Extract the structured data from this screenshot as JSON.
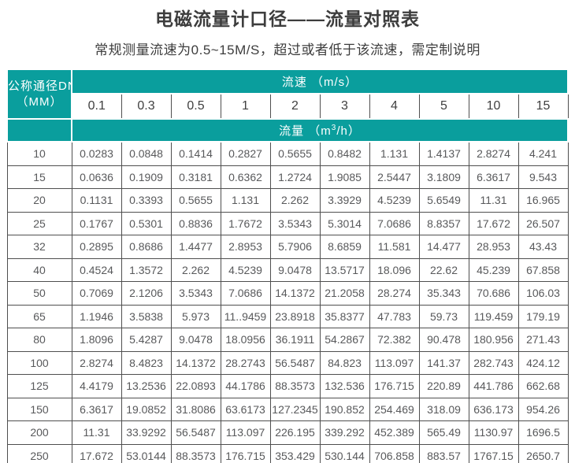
{
  "page": {
    "title": "电磁流量计口径——流量对照表",
    "subtitle": "常规测量流速为0.5~15M/S，超过或者低于该流速，需定制说明"
  },
  "colors": {
    "teal_header": "#0A9E9D",
    "header_text": "#ffffff",
    "title_text": "#3d3d3d",
    "data_text": "#58595b",
    "grid_line": "#4f4f4f"
  },
  "chart_data": {
    "type": "table",
    "title": "电磁流量计口径——流量对照表",
    "subtitle": "常规测量流速为0.5~15M/S，超过或者低于该流速，需定制说明",
    "corner_header_line1": "公称通径DN",
    "corner_header_line2": "（MM）",
    "velocity_header": "流速 （m/s）",
    "flowrate_header_prefix": "流量 （m",
    "flowrate_header_sup": "3",
    "flowrate_header_suffix": "/h）",
    "velocities": [
      "0.1",
      "0.3",
      "0.5",
      "1",
      "2",
      "3",
      "4",
      "5",
      "10",
      "15"
    ],
    "rows": [
      {
        "dn": "10",
        "values": [
          "0.0283",
          "0.0848",
          "0.1414",
          "0.2827",
          "0.5655",
          "0.8482",
          "1.131",
          "1.4137",
          "2.8274",
          "4.241"
        ]
      },
      {
        "dn": "15",
        "values": [
          "0.0636",
          "0.1909",
          "0.3181",
          "0.6362",
          "1.2724",
          "1.9085",
          "2.5447",
          "3.1809",
          "6.3617",
          "9.543"
        ]
      },
      {
        "dn": "20",
        "values": [
          "0.1131",
          "0.3393",
          "0.5655",
          "1.131",
          "2.262",
          "3.3929",
          "4.5239",
          "5.6549",
          "11.31",
          "16.965"
        ]
      },
      {
        "dn": "25",
        "values": [
          "0.1767",
          "0.5301",
          "0.8836",
          "1.7672",
          "3.5343",
          "5.3014",
          "7.0686",
          "8.8357",
          "17.672",
          "26.507"
        ]
      },
      {
        "dn": "32",
        "values": [
          "0.2895",
          "0.8686",
          "1.4477",
          "2.8953",
          "5.7906",
          "8.6859",
          "11.581",
          "14.477",
          "28.953",
          "43.43"
        ]
      },
      {
        "dn": "40",
        "values": [
          "0.4524",
          "1.3572",
          "2.262",
          "4.5239",
          "9.0478",
          "13.5717",
          "18.096",
          "22.62",
          "45.239",
          "67.858"
        ]
      },
      {
        "dn": "50",
        "values": [
          "0.7069",
          "2.1206",
          "3.5343",
          "7.0686",
          "14.1372",
          "21.2058",
          "28.274",
          "35.343",
          "70.686",
          "106.03"
        ]
      },
      {
        "dn": "65",
        "values": [
          "1.1946",
          "3.5838",
          "5.973",
          "11..9459",
          "23.8918",
          "35.8377",
          "47.783",
          "59.73",
          "119.459",
          "179.19"
        ]
      },
      {
        "dn": "80",
        "values": [
          "1.8096",
          "5.4287",
          "9.0478",
          "18.0956",
          "36.1911",
          "54.2867",
          "72.382",
          "90.478",
          "180.956",
          "271.43"
        ]
      },
      {
        "dn": "100",
        "values": [
          "2.8274",
          "8.4823",
          "14.1372",
          "28.2743",
          "56.5487",
          "84.823",
          "113.097",
          "141.37",
          "282.743",
          "424.12"
        ]
      },
      {
        "dn": "125",
        "values": [
          "4.4179",
          "13.2536",
          "22.0893",
          "44.1786",
          "88.3573",
          "132.536",
          "176.715",
          "220.89",
          "441.786",
          "662.68"
        ]
      },
      {
        "dn": "150",
        "values": [
          "6.3617",
          "19.0852",
          "31.8086",
          "63.6173",
          "127.2345",
          "190.852",
          "254.469",
          "318.09",
          "636.173",
          "954.26"
        ]
      },
      {
        "dn": "200",
        "values": [
          "11.31",
          "33.9292",
          "56.5487",
          "113.097",
          "226.195",
          "339.292",
          "452.389",
          "565.49",
          "1130.97",
          "1696.5"
        ]
      },
      {
        "dn": "250",
        "values": [
          "17.672",
          "53.0144",
          "88.3573",
          "176.715",
          "353.429",
          "530.144",
          "706.858",
          "883.57",
          "1767.15",
          "2650.7"
        ]
      }
    ]
  }
}
